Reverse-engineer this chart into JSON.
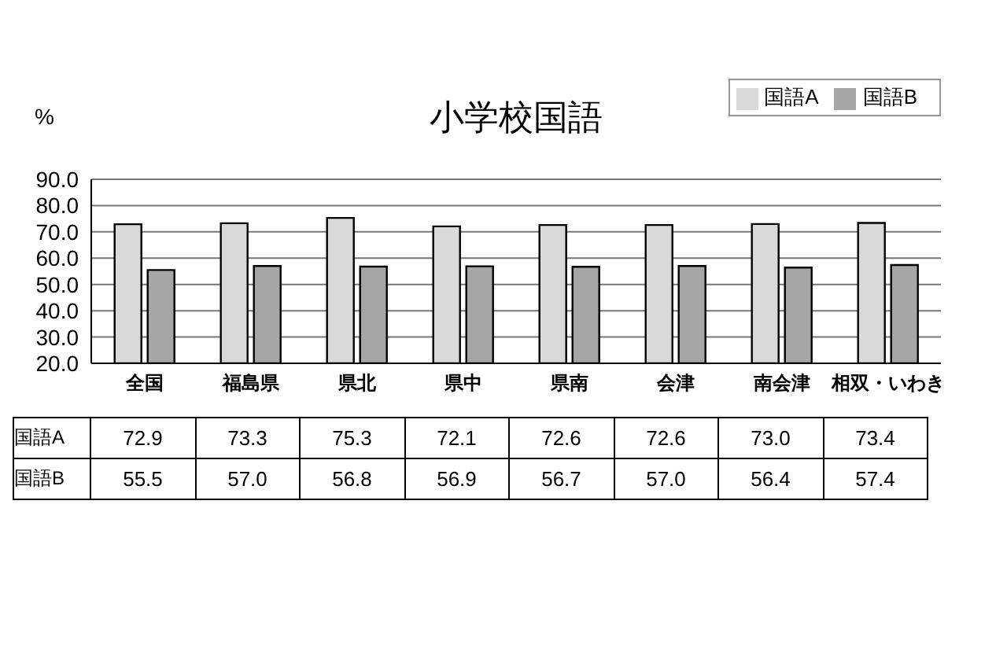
{
  "chart_data": {
    "type": "bar",
    "title": "小学校国語",
    "ylabel": "%",
    "categories": [
      "全国",
      "福島県",
      "県北",
      "県中",
      "県南",
      "会津",
      "南会津",
      "相双・いわき"
    ],
    "series": [
      {
        "name": "国語A",
        "color": "#d9d9d9",
        "values": [
          72.9,
          73.3,
          75.3,
          72.1,
          72.6,
          72.6,
          73.0,
          73.4
        ],
        "value_labels": [
          "72.9",
          "73.3",
          "75.3",
          "72.1",
          "72.6",
          "72.6",
          "73.0",
          "73.4"
        ]
      },
      {
        "name": "国語B",
        "color": "#a6a6a6",
        "values": [
          55.5,
          57.0,
          56.8,
          56.9,
          56.7,
          57.0,
          56.4,
          57.4
        ],
        "value_labels": [
          "55.5",
          "57.0",
          "56.8",
          "56.9",
          "56.7",
          "57.0",
          "56.4",
          "57.4"
        ]
      }
    ],
    "ylim": [
      20,
      90
    ],
    "yticks": [
      {
        "value": 20,
        "label": "20.0"
      },
      {
        "value": 30,
        "label": "30.0"
      },
      {
        "value": 40,
        "label": "40.0"
      },
      {
        "value": 50,
        "label": "50.0"
      },
      {
        "value": 60,
        "label": "60.0"
      },
      {
        "value": 70,
        "label": "70.0"
      },
      {
        "value": 80,
        "label": "80.0"
      },
      {
        "value": 90,
        "label": "90.0"
      }
    ],
    "grid": "y",
    "legend": "top right"
  }
}
